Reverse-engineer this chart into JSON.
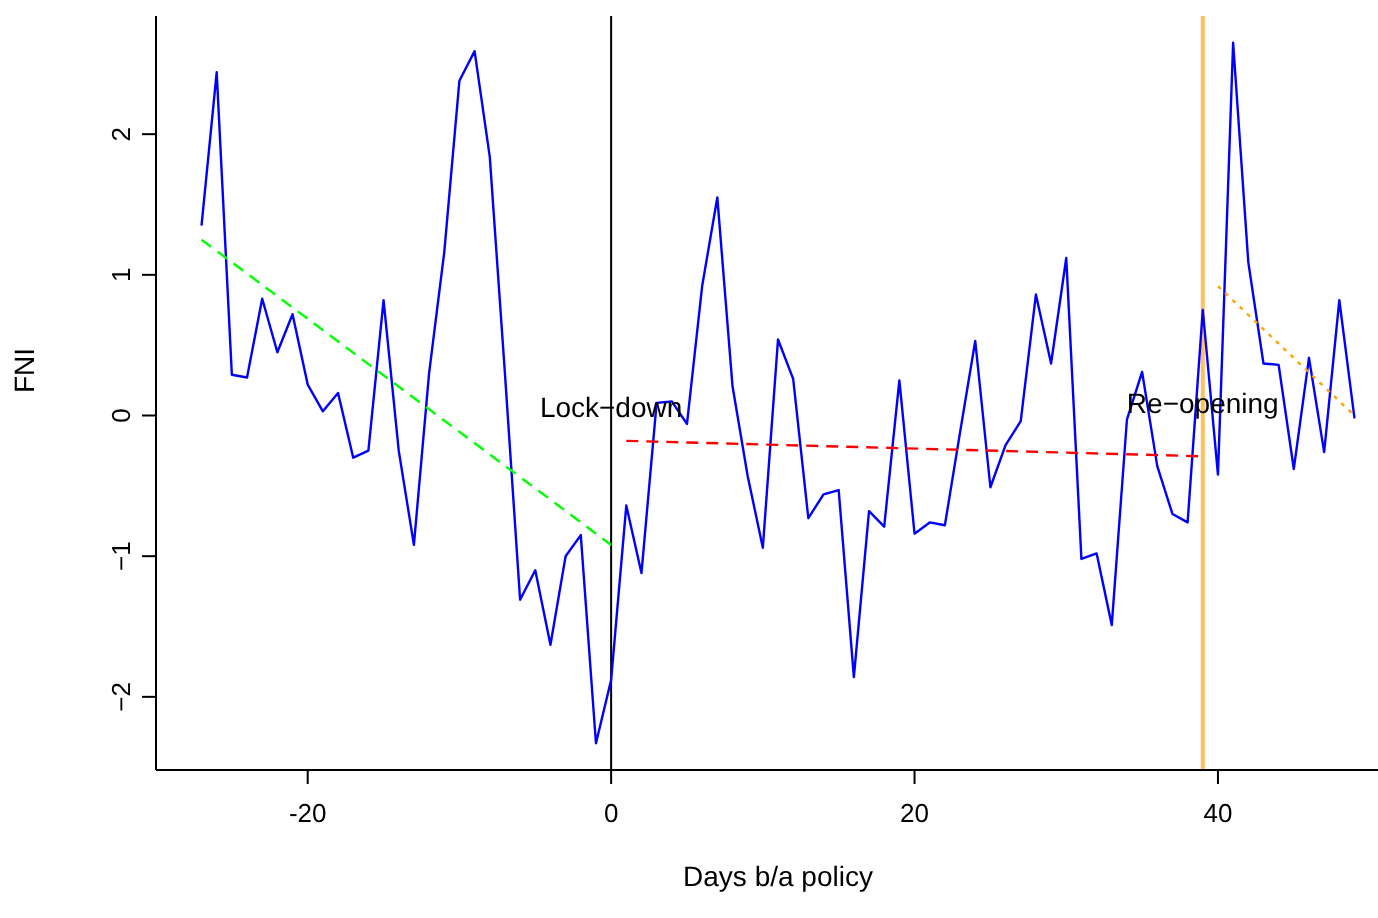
{
  "chart_data": {
    "type": "line",
    "xlabel": "Days b/a policy",
    "ylabel": "FNI",
    "xlim": [
      -30,
      52
    ],
    "ylim": [
      -2.52,
      2.84
    ],
    "xticks": [
      -20,
      0,
      20,
      40
    ],
    "yticks": [
      {
        "value": -2,
        "label": "−2"
      },
      {
        "value": -1,
        "label": "−1"
      },
      0,
      1,
      2
    ],
    "grid": false,
    "marker": "none",
    "series": [
      {
        "color": "#0000ff",
        "line_style": "solid",
        "x": [
          -27,
          -26,
          -25,
          -24,
          -23,
          -22,
          -21,
          -20,
          -19,
          -18,
          -17,
          -16,
          -15,
          -14,
          -13,
          -12,
          -11,
          -10,
          -9,
          -8,
          -7,
          -6,
          -5,
          -4,
          -3,
          -2,
          -1,
          0,
          1,
          2,
          3,
          4,
          5,
          6,
          7,
          8,
          9,
          10,
          11,
          12,
          13,
          14,
          15,
          16,
          17,
          18,
          19,
          20,
          21,
          22,
          23,
          24,
          25,
          26,
          27,
          28,
          29,
          30,
          31,
          32,
          33,
          34,
          35,
          36,
          37,
          38,
          39,
          40,
          41,
          42,
          43,
          44,
          45,
          46,
          47,
          48,
          49
        ],
        "values": [
          1.35,
          2.44,
          0.29,
          0.27,
          0.83,
          0.45,
          0.72,
          0.22,
          0.03,
          0.16,
          -0.3,
          -0.25,
          0.82,
          -0.25,
          -0.92,
          0.3,
          1.16,
          2.38,
          2.59,
          1.84,
          0.3,
          -1.31,
          -1.1,
          -1.63,
          -1.0,
          -0.85,
          -2.33,
          -1.88,
          -0.64,
          -1.12,
          0.09,
          0.1,
          -0.06,
          0.92,
          1.55,
          0.21,
          -0.43,
          -0.94,
          0.54,
          0.26,
          -0.73,
          -0.56,
          -0.53,
          -1.86,
          -0.68,
          -0.79,
          0.25,
          -0.84,
          -0.76,
          -0.78,
          -0.12,
          0.53,
          -0.51,
          -0.21,
          -0.04,
          0.86,
          0.37,
          1.12,
          -1.02,
          -0.98,
          -1.49,
          -0.03,
          0.31,
          -0.36,
          -0.7,
          -0.76,
          0.75,
          -0.42,
          2.65,
          1.09,
          0.37,
          0.36,
          -0.38,
          0.41,
          -0.26,
          0.82,
          -0.02
        ]
      },
      {
        "color": "#00ff00",
        "line_style": "dashed",
        "x": [
          -27,
          0
        ],
        "values": [
          1.25,
          -0.92
        ]
      },
      {
        "color": "#ff0000",
        "line_style": "dashed",
        "x": [
          1,
          39
        ],
        "values": [
          -0.18,
          -0.29
        ]
      },
      {
        "color": "#ffa500",
        "line_style": "dotted",
        "x": [
          40,
          49
        ],
        "values": [
          0.92,
          0.0
        ]
      }
    ],
    "ref_lines": [
      {
        "axis": "x",
        "value": 0,
        "color": "#000000",
        "line_style": "solid"
      },
      {
        "axis": "x",
        "value": 39,
        "color": "#ffc060",
        "line_style": "solid"
      }
    ],
    "annotations": [
      {
        "text": "Lock−down",
        "x": 0,
        "y": 0.06
      },
      {
        "text": "Re−opening",
        "x": 39,
        "y": 0.09
      }
    ]
  }
}
